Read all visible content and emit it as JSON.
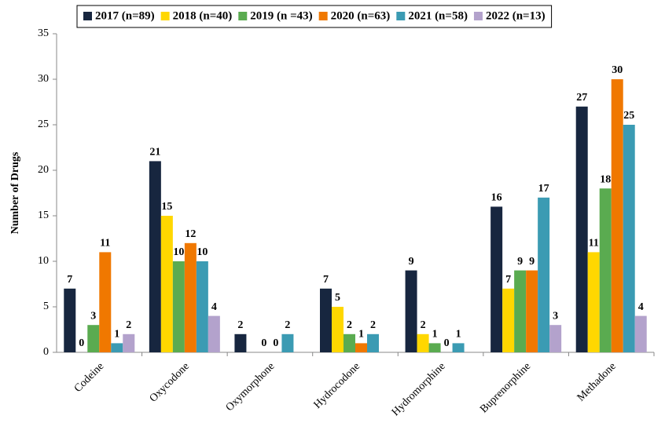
{
  "chart_data": {
    "type": "bar",
    "y_label": "Number of Drugs",
    "categories": [
      "Codeine",
      "Oxycodone",
      "Oxymorphone",
      "Hydrocodone",
      "Hydromorphine",
      "Buprenorphine",
      "Methadone"
    ],
    "series": [
      {
        "name": "2017 (n=89)",
        "color": "#17263f",
        "values": [
          7,
          21,
          2,
          7,
          9,
          16,
          27
        ]
      },
      {
        "name": "2018 (n=40)",
        "color": "#ffd700",
        "values": [
          0,
          15,
          null,
          5,
          2,
          7,
          11
        ]
      },
      {
        "name": "2019 (n =43)",
        "color": "#5aab50",
        "values": [
          3,
          10,
          0,
          2,
          1,
          9,
          18
        ]
      },
      {
        "name": "2020 (n=63)",
        "color": "#f07800",
        "values": [
          11,
          12,
          0,
          1,
          0,
          9,
          30
        ]
      },
      {
        "name": "2021 (n=58)",
        "color": "#3b9bb3",
        "values": [
          1,
          10,
          2,
          2,
          1,
          17,
          25
        ]
      },
      {
        "name": "2022 (n=13)",
        "color": "#b3a2cc",
        "values": [
          2,
          4,
          null,
          null,
          null,
          3,
          4
        ]
      }
    ],
    "ylim": [
      0,
      35
    ],
    "yticks": [
      0,
      5,
      10,
      15,
      20,
      25,
      30,
      35
    ],
    "grid": false,
    "legend": "top"
  }
}
